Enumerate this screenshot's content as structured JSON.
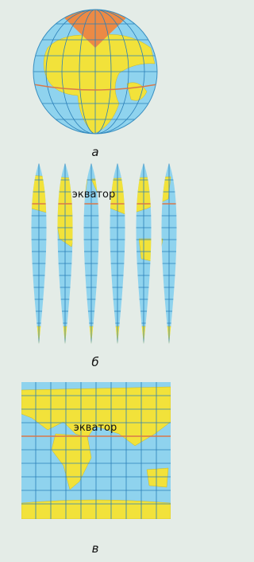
{
  "figures": [
    {
      "label": "а"
    },
    {
      "label": "б",
      "equator_label": "экватор"
    },
    {
      "label": "в",
      "equator_label": "экватор"
    }
  ]
}
